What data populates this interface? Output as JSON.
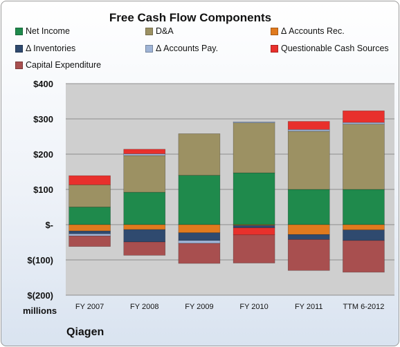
{
  "chart_data": {
    "type": "bar",
    "stacked": true,
    "title": "Free Cash Flow Components",
    "categories": [
      "FY 2007",
      "FY 2008",
      "FY 2009",
      "FY 2010",
      "FY 2011",
      "TTM 6-2012"
    ],
    "y_ticks": [
      400,
      300,
      200,
      100,
      0,
      -100,
      -200
    ],
    "y_tick_labels": [
      "$400",
      "$300",
      "$200",
      "$100",
      "$-",
      "$(100)",
      "$(200)"
    ],
    "ylim": [
      -200,
      400
    ],
    "units_label": "millions",
    "grid": true,
    "legend_position": "top",
    "series": [
      {
        "name": "Net Income",
        "color": "#1f8a4c",
        "values": [
          50,
          92,
          140,
          147,
          100,
          100
        ]
      },
      {
        "name": "D&A",
        "color": "#9c9163",
        "values": [
          63,
          104,
          118,
          142,
          165,
          185
        ]
      },
      {
        "name": "Δ Accounts Rec.",
        "color": "#e07a1e",
        "values": [
          -18,
          -14,
          -23,
          -2,
          -28,
          -15
        ]
      },
      {
        "name": "Δ Inventories",
        "color": "#2f4a6f",
        "values": [
          -8,
          -35,
          -22,
          -7,
          -14,
          -30
        ]
      },
      {
        "name": "Δ Accounts Pay.",
        "color": "#9fb4d6",
        "values": [
          -6,
          5,
          -8,
          3,
          5,
          5
        ]
      },
      {
        "name": "Questionable Cash Sources",
        "color": "#e8302c",
        "values": [
          26,
          13,
          0,
          -20,
          23,
          33
        ]
      },
      {
        "name": "Capital Expenditure",
        "color": "#a84f4f",
        "values": [
          -30,
          -38,
          -57,
          -80,
          -88,
          -90
        ]
      }
    ]
  },
  "footer": {
    "company": "Qiagen"
  }
}
